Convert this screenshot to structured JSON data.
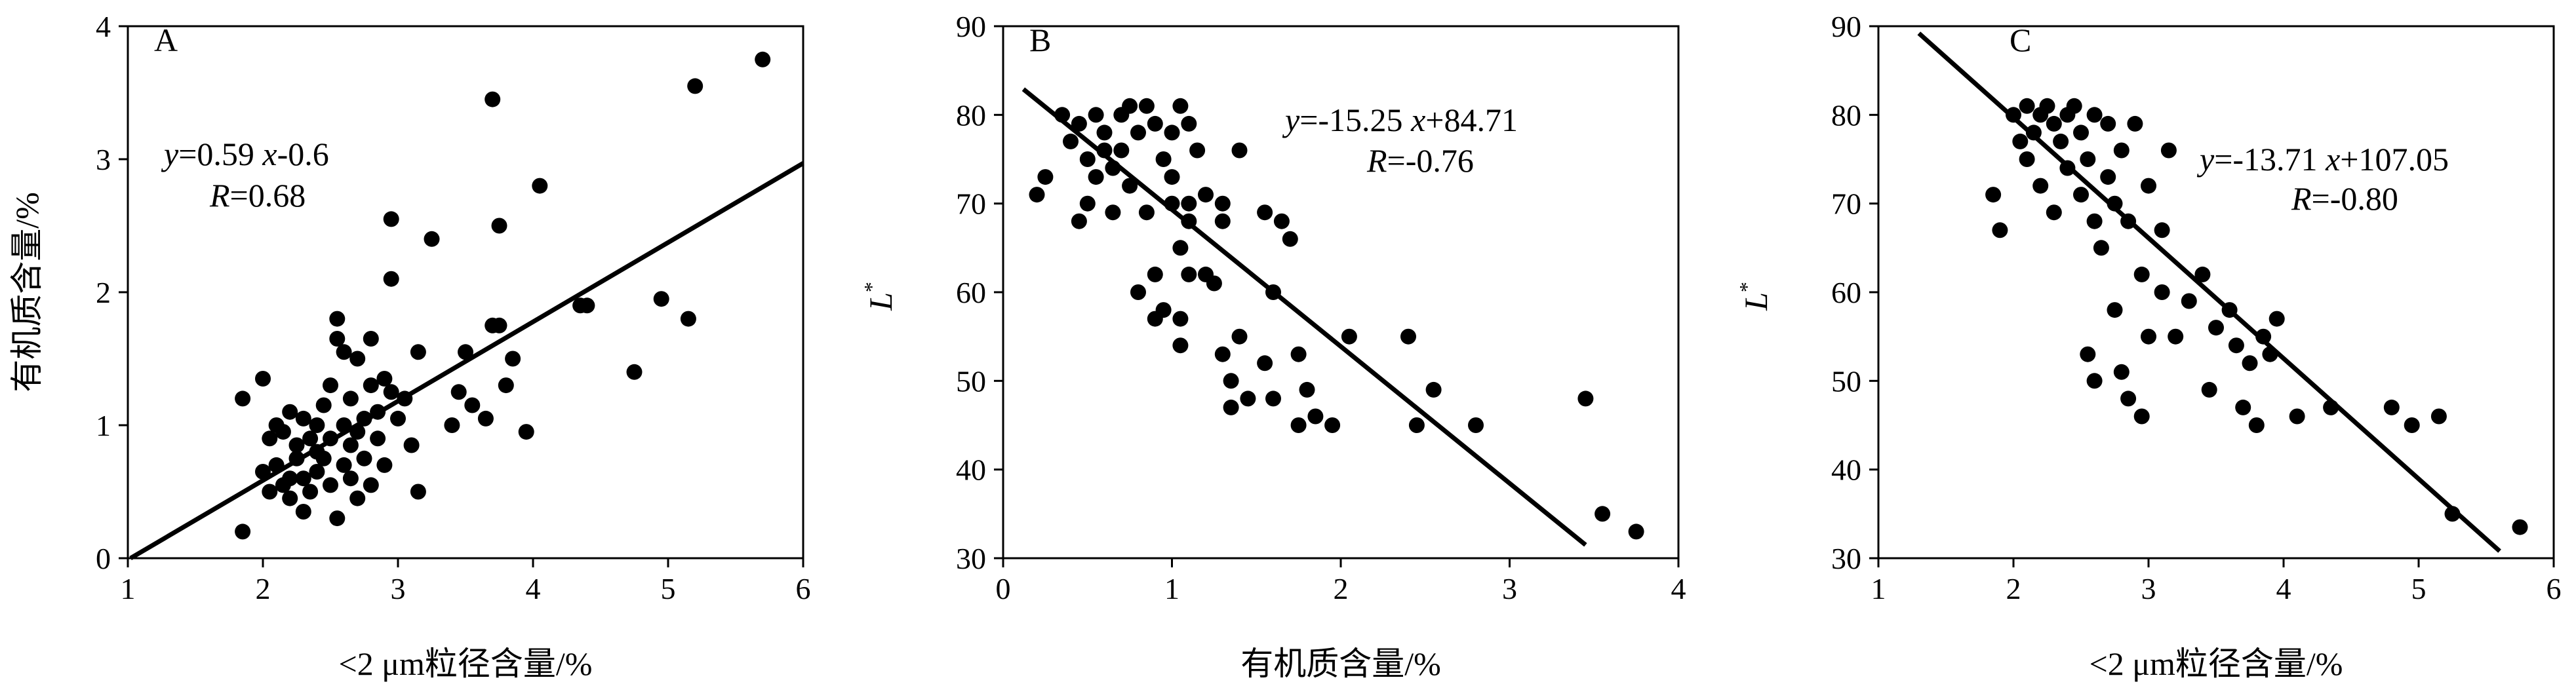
{
  "chart_data": [
    {
      "type": "scatter",
      "panel_label": "A",
      "xlabel": "<2 μm粒径含量/%",
      "ylabel": "有机质含量/%",
      "xlim": [
        1,
        6
      ],
      "ylim": [
        0,
        4
      ],
      "xticks": [
        "1",
        "2",
        "3",
        "4",
        "5",
        "6"
      ],
      "yticks": [
        "0",
        "1",
        "2",
        "3",
        "4"
      ],
      "equation_y": "y",
      "equation_rest": "=0.59 ",
      "equation_x": "x",
      "equation_tail": "-0.6",
      "r_label": "R",
      "r_value": "=0.68",
      "fit_line": {
        "x": [
          1.02,
          6.0
        ],
        "y": [
          0.0,
          2.97
        ]
      },
      "points": [
        [
          1.85,
          0.2
        ],
        [
          1.85,
          1.2
        ],
        [
          2.0,
          1.35
        ],
        [
          2.0,
          0.65
        ],
        [
          2.05,
          0.9
        ],
        [
          2.05,
          0.5
        ],
        [
          2.1,
          1.0
        ],
        [
          2.1,
          0.7
        ],
        [
          2.15,
          0.55
        ],
        [
          2.15,
          0.95
        ],
        [
          2.2,
          0.6
        ],
        [
          2.2,
          1.1
        ],
        [
          2.2,
          0.45
        ],
        [
          2.25,
          0.85
        ],
        [
          2.25,
          0.75
        ],
        [
          2.3,
          1.05
        ],
        [
          2.3,
          0.6
        ],
        [
          2.3,
          0.35
        ],
        [
          2.35,
          0.9
        ],
        [
          2.35,
          0.5
        ],
        [
          2.4,
          1.0
        ],
        [
          2.4,
          0.8
        ],
        [
          2.4,
          0.65
        ],
        [
          2.45,
          0.75
        ],
        [
          2.45,
          1.15
        ],
        [
          2.5,
          0.55
        ],
        [
          2.5,
          0.9
        ],
        [
          2.5,
          1.3
        ],
        [
          2.55,
          1.8
        ],
        [
          2.55,
          1.65
        ],
        [
          2.55,
          0.3
        ],
        [
          2.6,
          1.0
        ],
        [
          2.6,
          0.7
        ],
        [
          2.6,
          1.55
        ],
        [
          2.65,
          0.85
        ],
        [
          2.65,
          1.2
        ],
        [
          2.65,
          0.6
        ],
        [
          2.7,
          1.5
        ],
        [
          2.7,
          0.95
        ],
        [
          2.7,
          0.45
        ],
        [
          2.75,
          1.05
        ],
        [
          2.75,
          0.75
        ],
        [
          2.8,
          1.3
        ],
        [
          2.8,
          0.55
        ],
        [
          2.8,
          1.65
        ],
        [
          2.85,
          1.1
        ],
        [
          2.85,
          0.9
        ],
        [
          2.9,
          1.35
        ],
        [
          2.9,
          0.7
        ],
        [
          2.95,
          2.1
        ],
        [
          2.95,
          1.25
        ],
        [
          2.95,
          2.55
        ],
        [
          3.0,
          1.05
        ],
        [
          3.05,
          1.2
        ],
        [
          3.1,
          0.85
        ],
        [
          3.15,
          1.55
        ],
        [
          3.15,
          0.5
        ],
        [
          3.25,
          2.4
        ],
        [
          3.4,
          1.0
        ],
        [
          3.45,
          1.25
        ],
        [
          3.5,
          1.55
        ],
        [
          3.55,
          1.15
        ],
        [
          3.65,
          1.05
        ],
        [
          3.7,
          3.45
        ],
        [
          3.7,
          1.75
        ],
        [
          3.75,
          2.5
        ],
        [
          3.75,
          1.75
        ],
        [
          3.8,
          1.3
        ],
        [
          3.85,
          1.5
        ],
        [
          3.95,
          0.95
        ],
        [
          4.05,
          2.8
        ],
        [
          4.35,
          1.9
        ],
        [
          4.4,
          1.9
        ],
        [
          4.75,
          1.4
        ],
        [
          4.95,
          1.95
        ],
        [
          5.15,
          1.8
        ],
        [
          5.2,
          3.55
        ],
        [
          5.7,
          3.75
        ]
      ]
    },
    {
      "type": "scatter",
      "panel_label": "B",
      "xlabel": "有机质含量/%",
      "ylabel": "L",
      "ylabel_sup": "*",
      "xlim": [
        0,
        4
      ],
      "ylim": [
        30,
        90
      ],
      "xticks": [
        "0",
        "1",
        "2",
        "3",
        "4"
      ],
      "yticks": [
        "30",
        "40",
        "50",
        "60",
        "70",
        "80",
        "90"
      ],
      "equation_y": "y",
      "equation_rest": "=-15.25 ",
      "equation_x": "x",
      "equation_tail": "+84.71",
      "r_label": "R",
      "r_value": "=-0.76",
      "fit_line": {
        "x": [
          0.12,
          3.45
        ],
        "y": [
          82.9,
          31.5
        ]
      },
      "points": [
        [
          0.2,
          71
        ],
        [
          0.25,
          73
        ],
        [
          0.35,
          80
        ],
        [
          0.4,
          77
        ],
        [
          0.45,
          68
        ],
        [
          0.45,
          79
        ],
        [
          0.5,
          75
        ],
        [
          0.5,
          70
        ],
        [
          0.55,
          80
        ],
        [
          0.55,
          73
        ],
        [
          0.6,
          76
        ],
        [
          0.6,
          78
        ],
        [
          0.65,
          69
        ],
        [
          0.65,
          74
        ],
        [
          0.7,
          80
        ],
        [
          0.7,
          76
        ],
        [
          0.75,
          81
        ],
        [
          0.75,
          72
        ],
        [
          0.8,
          78
        ],
        [
          0.8,
          60
        ],
        [
          0.85,
          81
        ],
        [
          0.85,
          69
        ],
        [
          0.9,
          79
        ],
        [
          0.9,
          62
        ],
        [
          0.9,
          57
        ],
        [
          0.95,
          75
        ],
        [
          0.95,
          58
        ],
        [
          1.0,
          78
        ],
        [
          1.0,
          70
        ],
        [
          1.0,
          73
        ],
        [
          1.05,
          81
        ],
        [
          1.05,
          65
        ],
        [
          1.05,
          57
        ],
        [
          1.05,
          54
        ],
        [
          1.1,
          79
        ],
        [
          1.1,
          70
        ],
        [
          1.1,
          62
        ],
        [
          1.1,
          68
        ],
        [
          1.15,
          76
        ],
        [
          1.2,
          71
        ],
        [
          1.2,
          62
        ],
        [
          1.25,
          61
        ],
        [
          1.3,
          70
        ],
        [
          1.3,
          68
        ],
        [
          1.3,
          53
        ],
        [
          1.35,
          50
        ],
        [
          1.35,
          47
        ],
        [
          1.4,
          76
        ],
        [
          1.4,
          55
        ],
        [
          1.45,
          48
        ],
        [
          1.55,
          69
        ],
        [
          1.55,
          52
        ],
        [
          1.6,
          48
        ],
        [
          1.6,
          60
        ],
        [
          1.65,
          68
        ],
        [
          1.7,
          66
        ],
        [
          1.75,
          53
        ],
        [
          1.75,
          45
        ],
        [
          1.8,
          49
        ],
        [
          1.85,
          46
        ],
        [
          1.95,
          45
        ],
        [
          2.05,
          55
        ],
        [
          2.4,
          55
        ],
        [
          2.45,
          45
        ],
        [
          2.55,
          49
        ],
        [
          2.8,
          45
        ],
        [
          3.45,
          48
        ],
        [
          3.55,
          35
        ],
        [
          3.75,
          33
        ]
      ]
    },
    {
      "type": "scatter",
      "panel_label": "C",
      "xlabel": "<2 μm粒径含量/%",
      "ylabel": "L",
      "ylabel_sup": "*",
      "xlim": [
        1,
        6
      ],
      "ylim": [
        30,
        90
      ],
      "xticks": [
        "1",
        "2",
        "3",
        "4",
        "5",
        "6"
      ],
      "yticks": [
        "30",
        "40",
        "50",
        "60",
        "70",
        "80",
        "90"
      ],
      "equation_y": "y",
      "equation_rest": "=-13.71 ",
      "equation_x": "x",
      "equation_tail": "+107.05",
      "r_label": "R",
      "r_value": "=-0.80",
      "fit_line": {
        "x": [
          1.3,
          5.6
        ],
        "y": [
          89.2,
          30.8
        ]
      },
      "points": [
        [
          1.85,
          71
        ],
        [
          1.9,
          67
        ],
        [
          2.0,
          80
        ],
        [
          2.05,
          77
        ],
        [
          2.1,
          81
        ],
        [
          2.1,
          75
        ],
        [
          2.15,
          78
        ],
        [
          2.2,
          80
        ],
        [
          2.2,
          72
        ],
        [
          2.25,
          81
        ],
        [
          2.3,
          79
        ],
        [
          2.3,
          69
        ],
        [
          2.35,
          77
        ],
        [
          2.4,
          80
        ],
        [
          2.4,
          74
        ],
        [
          2.45,
          81
        ],
        [
          2.5,
          78
        ],
        [
          2.5,
          71
        ],
        [
          2.55,
          75
        ],
        [
          2.55,
          53
        ],
        [
          2.6,
          80
        ],
        [
          2.6,
          68
        ],
        [
          2.6,
          50
        ],
        [
          2.65,
          65
        ],
        [
          2.7,
          79
        ],
        [
          2.7,
          73
        ],
        [
          2.75,
          70
        ],
        [
          2.75,
          58
        ],
        [
          2.8,
          51
        ],
        [
          2.8,
          76
        ],
        [
          2.85,
          68
        ],
        [
          2.85,
          48
        ],
        [
          2.9,
          79
        ],
        [
          2.95,
          62
        ],
        [
          2.95,
          46
        ],
        [
          3.0,
          72
        ],
        [
          3.0,
          55
        ],
        [
          3.1,
          67
        ],
        [
          3.1,
          60
        ],
        [
          3.15,
          76
        ],
        [
          3.2,
          55
        ],
        [
          3.3,
          59
        ],
        [
          3.4,
          62
        ],
        [
          3.45,
          49
        ],
        [
          3.5,
          56
        ],
        [
          3.6,
          58
        ],
        [
          3.65,
          54
        ],
        [
          3.7,
          47
        ],
        [
          3.75,
          52
        ],
        [
          3.8,
          45
        ],
        [
          3.85,
          55
        ],
        [
          3.9,
          53
        ],
        [
          3.95,
          57
        ],
        [
          4.1,
          46
        ],
        [
          4.35,
          47
        ],
        [
          4.8,
          47
        ],
        [
          4.95,
          45
        ],
        [
          5.15,
          46
        ],
        [
          5.25,
          35
        ],
        [
          5.75,
          33.5
        ]
      ]
    }
  ]
}
